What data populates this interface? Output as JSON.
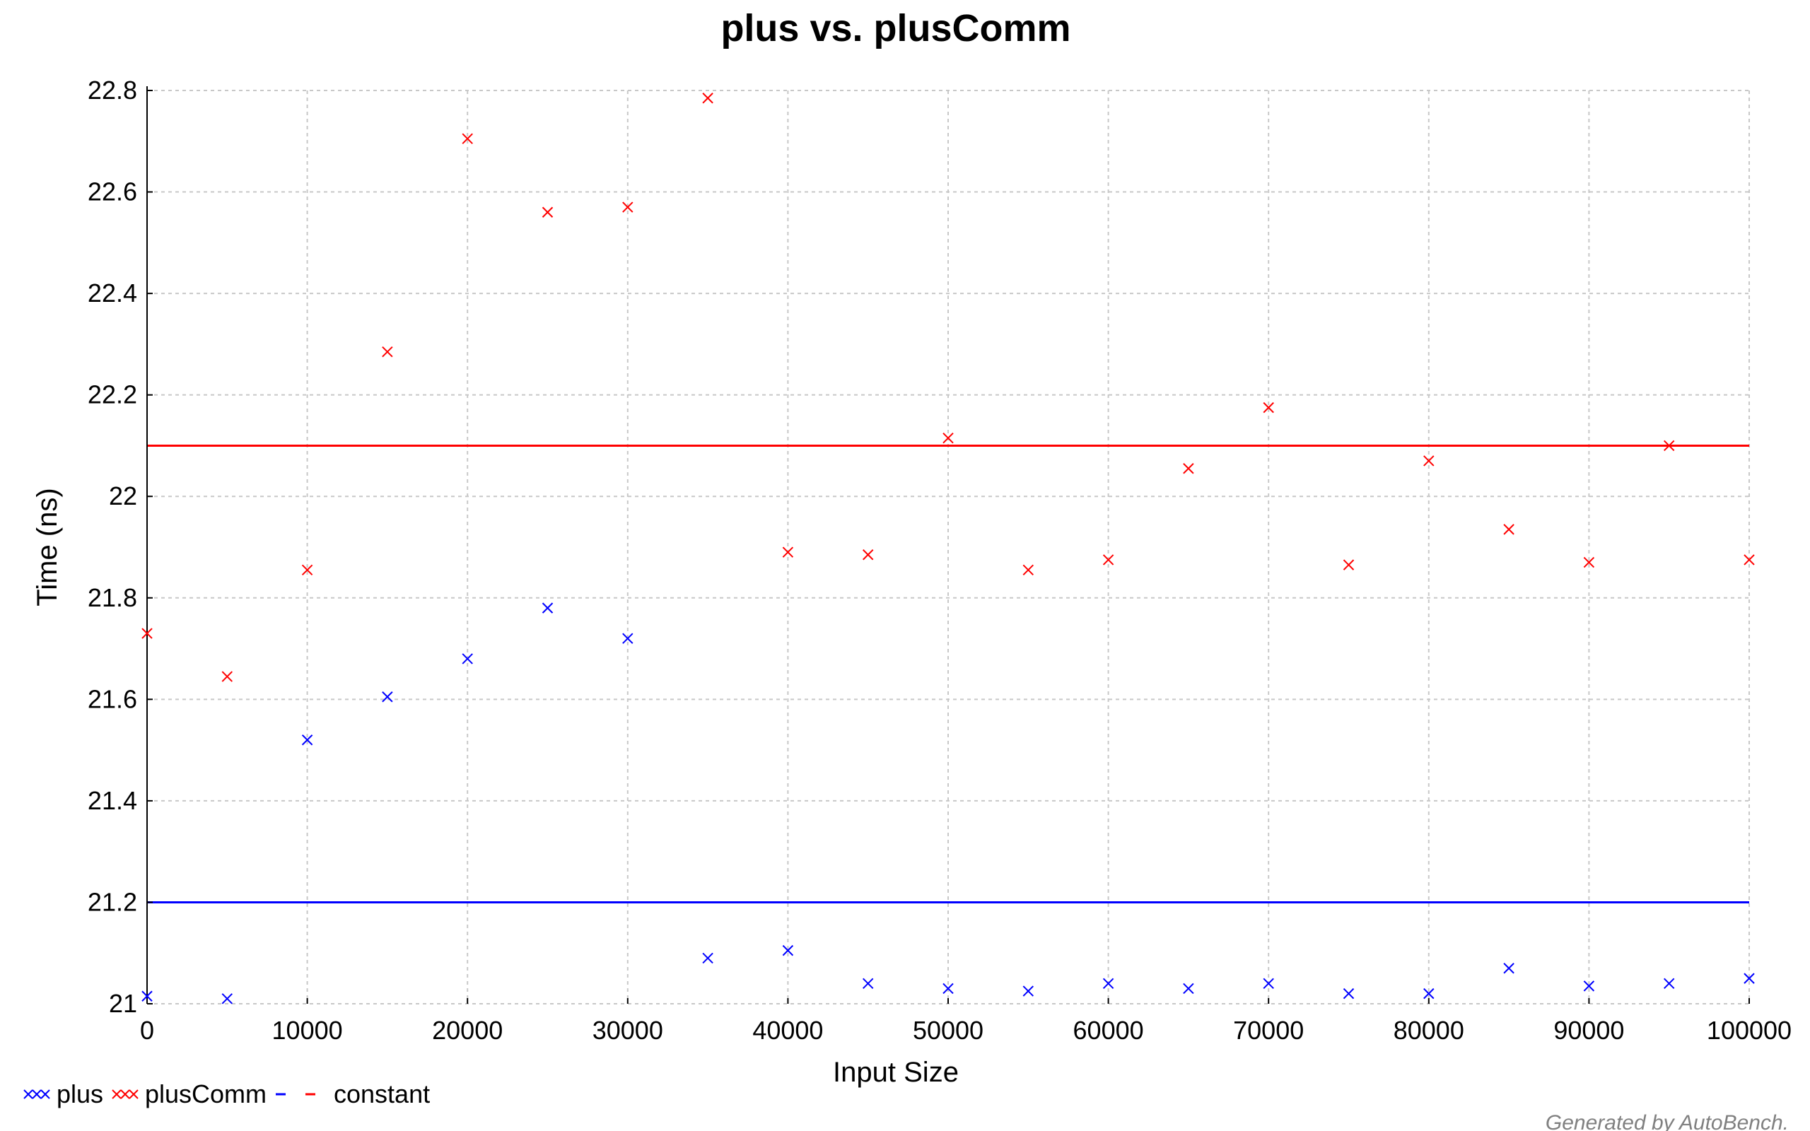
{
  "chart_data": {
    "type": "scatter",
    "title": "plus vs. plusComm",
    "xlabel": "Input Size",
    "ylabel": "Time (ns)",
    "xlim": [
      0,
      100000
    ],
    "ylim": [
      21,
      22.8
    ],
    "x_ticks": [
      "0",
      "10000",
      "20000",
      "30000",
      "40000",
      "50000",
      "60000",
      "70000",
      "80000",
      "90000",
      "100000"
    ],
    "y_ticks": [
      "21",
      "21.2",
      "21.4",
      "21.6",
      "21.8",
      "22",
      "22.2",
      "22.4",
      "22.6",
      "22.8"
    ],
    "grid": true,
    "legend_position": "bottom-left",
    "x": [
      0,
      5000,
      10000,
      15000,
      20000,
      25000,
      30000,
      35000,
      40000,
      45000,
      50000,
      55000,
      60000,
      65000,
      70000,
      75000,
      80000,
      85000,
      90000,
      95000,
      100000
    ],
    "series": [
      {
        "name": "plus",
        "color": "#0000ff",
        "marker": "x",
        "values": [
          21.015,
          21.01,
          21.52,
          21.605,
          21.68,
          21.78,
          21.72,
          21.09,
          21.105,
          21.04,
          21.03,
          21.025,
          21.04,
          21.03,
          21.04,
          21.02,
          21.02,
          21.07,
          21.035,
          21.04,
          21.05
        ]
      },
      {
        "name": "plusComm",
        "color": "#ff0000",
        "marker": "x",
        "values": [
          21.73,
          21.645,
          21.855,
          22.285,
          22.705,
          22.56,
          22.57,
          22.785,
          21.89,
          21.885,
          22.115,
          21.855,
          21.875,
          22.055,
          22.175,
          21.865,
          22.07,
          21.935,
          21.87,
          22.1,
          21.875
        ]
      }
    ],
    "constant_lines": [
      {
        "series": "plus",
        "color": "#0000ff",
        "value": 21.2
      },
      {
        "series": "plusComm",
        "color": "#ff0000",
        "value": 22.1
      }
    ],
    "legend": {
      "entries": [
        "plus",
        "plusComm",
        "constant"
      ]
    },
    "footer_note": "Generated by AutoBench."
  }
}
